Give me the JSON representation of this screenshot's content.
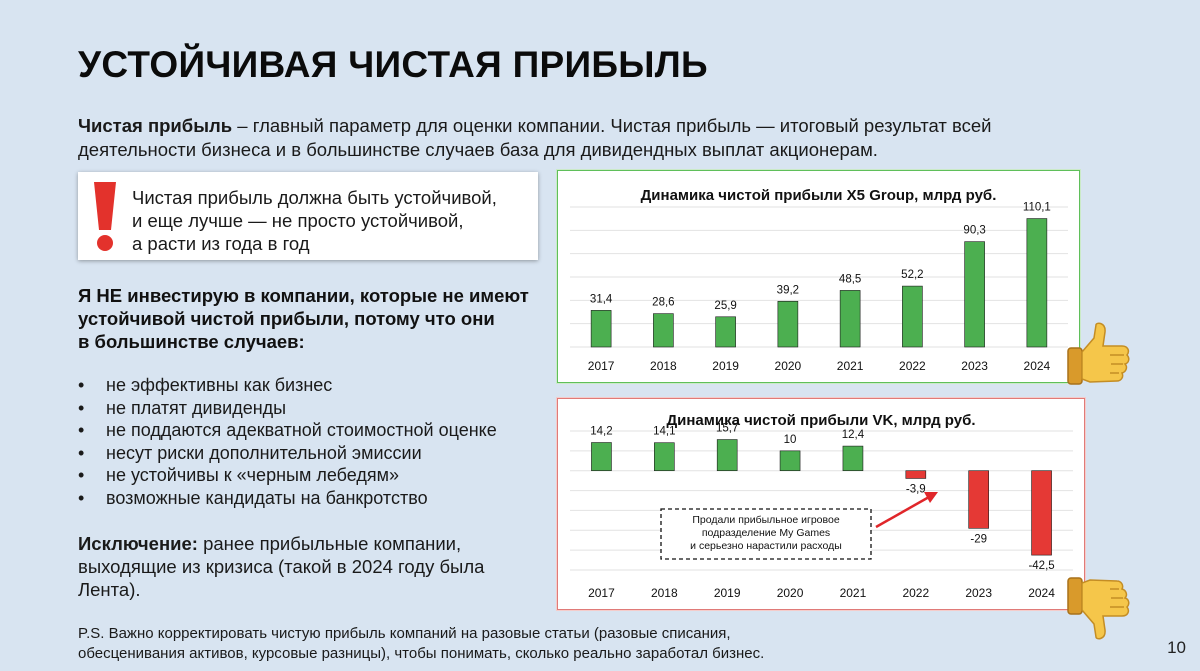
{
  "slide": {
    "title": "УСТОЙЧИВАЯ ЧИСТАЯ ПРИБЫЛЬ",
    "intro_bold": "Чистая прибыль",
    "intro_line1_rest": " – главный параметр для оценки компании. Чистая прибыль — итоговый результат всей",
    "intro_line2": "деятельности бизнеса и в большинстве случаев база для дивидендных выплат акционерам.",
    "callout_lines": [
      "Чистая прибыль должна быть устойчивой,",
      "и еще лучше — не просто устойчивой,",
      "а расти из года в год"
    ],
    "thesis_lines": [
      "Я НЕ инвестирую в компании, которые не имеют",
      "устойчивой чистой прибыли, потому что они",
      "в большинстве случаев:"
    ],
    "bullet_char": "•",
    "bullets": [
      "не эффективны как бизнес",
      "не платят дивиденды",
      "не поддаются адекватной стоимостной оценке",
      "несут риски дополнительной эмиссии",
      "не устойчивы к «черным лебедям»",
      "возможные кандидаты на банкротство"
    ],
    "exception_bold": "Исключение:",
    "exception_line1_rest": " ранее прибыльные компании,",
    "exception_line2": "выходящие из кризиса (такой в 2024 году была",
    "exception_line3": "Лента).",
    "ps_line1": "P.S. Важно корректировать чистую прибыль компаний на разовые статьи (разовые списания,",
    "ps_line2": "обесценивания активов, курсовые разницы), чтобы понимать, сколько реально заработал бизнес.",
    "page_number": "10"
  },
  "colors": {
    "background": "#d8e4f1",
    "bar_positive": "#4caf50",
    "bar_negative": "#e53935",
    "alert": "#e3322c",
    "arrow": "#e0262a"
  },
  "icons": {
    "alert": "exclamation-icon",
    "good": "thumbs-up-icon",
    "bad": "thumbs-down-icon"
  },
  "chart_data": [
    {
      "type": "bar",
      "title": "Динамика чистой прибыли X5 Group, млрд руб.",
      "categories": [
        "2017",
        "2018",
        "2019",
        "2020",
        "2021",
        "2022",
        "2023",
        "2024"
      ],
      "values": [
        31.4,
        28.6,
        25.9,
        39.2,
        48.5,
        52.2,
        90.3,
        110.1
      ],
      "labels": [
        "31,4",
        "28,6",
        "25,9",
        "39,2",
        "48,5",
        "52,2",
        "90,3",
        "110,1"
      ],
      "ylim": [
        0,
        120
      ],
      "grid": true,
      "color": "#4caf50"
    },
    {
      "type": "bar",
      "title": "Динамика чистой прибыли VK, млрд руб.",
      "categories": [
        "2017",
        "2018",
        "2019",
        "2020",
        "2021",
        "2022",
        "2023",
        "2024"
      ],
      "values": [
        14.2,
        14.1,
        15.7,
        10,
        12.4,
        -3.9,
        -29,
        -42.5
      ],
      "labels": [
        "14,2",
        "14,1",
        "15,7",
        "10",
        "12,4",
        "-3,9",
        "-29",
        "-42,5"
      ],
      "ylim": [
        -50,
        20
      ],
      "grid": true,
      "positive_color": "#4caf50",
      "negative_color": "#e53935",
      "annotation": {
        "lines": [
          "Продали прибыльное игровое",
          "подразделение My Games",
          "и серьезно нарастили расходы"
        ]
      }
    }
  ]
}
